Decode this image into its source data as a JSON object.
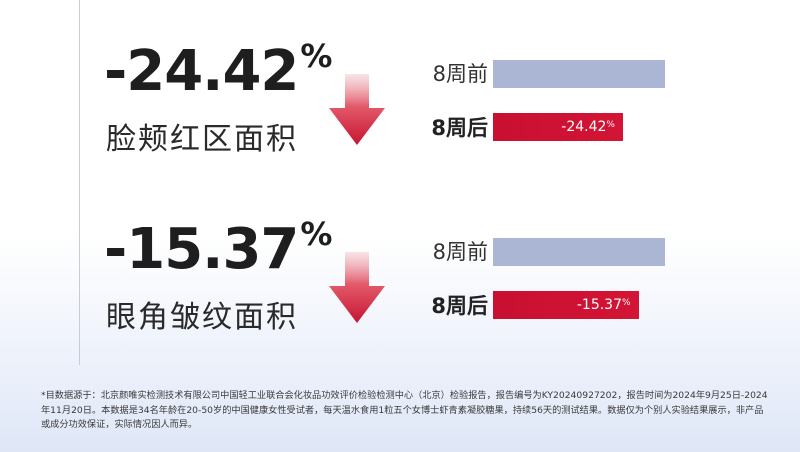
{
  "chart_data": [
    {
      "type": "bar",
      "orientation": "horizontal",
      "headline": {
        "value": "-24.42",
        "unit": "%",
        "label": "脸颊红区面积"
      },
      "categories": [
        "8周前",
        "8周后"
      ],
      "values": [
        100,
        75.58
      ],
      "value_labels": [
        "",
        "-24.42%"
      ],
      "colors": [
        "#aab6d3",
        "#c91031"
      ]
    },
    {
      "type": "bar",
      "orientation": "horizontal",
      "headline": {
        "value": "-15.37",
        "unit": "%",
        "label": "眼角皱纹面积"
      },
      "categories": [
        "8周前",
        "8周后"
      ],
      "values": [
        100,
        84.63
      ],
      "value_labels": [
        "",
        "-15.37%"
      ],
      "colors": [
        "#aab6d3",
        "#c91031"
      ]
    }
  ],
  "arrow_icon": "down-arrow-icon",
  "footnote": "*目数据源于：北京颜唯实检测技术有限公司中国轻工业联合会化妆品功效评价检验检测中心（北京）检验报告，报告编号为KY20240927202，报告时间为2024年9月25日-2024年11月20日。本数据是34名年龄在20-50岁的中国健康女性受试者，每天温水食用1粒五个女博士虾青素凝胶糖果，持续56天的测试结果。数据仅为个别人实验结果展示，非产品或成分功效保证，实际情况因人而异。"
}
